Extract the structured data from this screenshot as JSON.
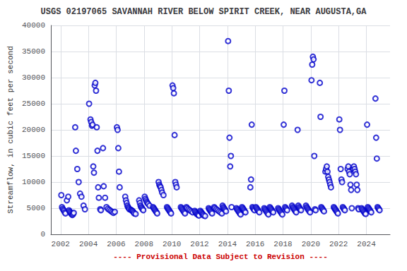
{
  "chart_data": {
    "type": "scatter",
    "title": "USGS 02197065 SAVANNAH RIVER BELOW SPIRIT CREEK, NEAR AUGUSTA,GA",
    "ylabel": "Streamflow, in cubic feet per second",
    "xlabel": "---- Provisional Data Subject to Revision ----",
    "xlim": [
      2001.3,
      2025.7
    ],
    "ylim": [
      0,
      40000
    ],
    "xticks": [
      2002,
      2004,
      2006,
      2008,
      2010,
      2012,
      2014,
      2016,
      2018,
      2020,
      2022,
      2024
    ],
    "yticks": [
      0,
      5000,
      10000,
      15000,
      20000,
      25000,
      30000,
      35000,
      40000
    ],
    "grid": true,
    "color": "#0000cc",
    "marker": "circle",
    "x": [
      2002.05,
      2002.1,
      2002.15,
      2002.2,
      2002.25,
      2002.3,
      2002.35,
      2002.45,
      2002.55,
      2002.6,
      2002.65,
      2002.7,
      2002.75,
      2002.8,
      2002.85,
      2002.9,
      2002.95,
      2003.05,
      2003.1,
      2003.2,
      2003.3,
      2003.4,
      2003.5,
      2003.65,
      2003.75,
      2004.05,
      2004.15,
      2004.2,
      2004.25,
      2004.3,
      2004.35,
      2004.4,
      2004.45,
      2004.5,
      2004.55,
      2004.6,
      2004.65,
      2004.7,
      2004.75,
      2004.85,
      2004.9,
      2005.05,
      2005.1,
      2005.2,
      2005.3,
      2005.4,
      2005.5,
      2005.6,
      2005.7,
      2005.8,
      2005.9,
      2006.05,
      2006.1,
      2006.15,
      2006.2,
      2006.25,
      2006.65,
      2006.7,
      2006.75,
      2006.8,
      2006.85,
      2006.9,
      2006.95,
      2007.05,
      2007.1,
      2007.15,
      2007.2,
      2007.25,
      2007.3,
      2007.4,
      2007.65,
      2007.7,
      2007.75,
      2007.8,
      2007.85,
      2007.9,
      2007.95,
      2008.05,
      2008.1,
      2008.15,
      2008.2,
      2008.25,
      2008.3,
      2008.4,
      2008.65,
      2008.7,
      2008.75,
      2008.8,
      2008.85,
      2008.9,
      2008.95,
      2009.05,
      2009.1,
      2009.15,
      2009.2,
      2009.25,
      2009.3,
      2009.4,
      2009.65,
      2009.7,
      2009.75,
      2009.8,
      2009.85,
      2009.9,
      2009.95,
      2010.05,
      2010.1,
      2010.15,
      2010.2,
      2010.25,
      2010.3,
      2010.35,
      2010.65,
      2010.7,
      2010.75,
      2010.8,
      2010.85,
      2010.9,
      2010.95,
      2011.05,
      2011.1,
      2011.2,
      2011.3,
      2011.4,
      2011.5,
      2011.65,
      2011.7,
      2011.75,
      2011.8,
      2011.85,
      2011.9,
      2011.95,
      2012.05,
      2012.1,
      2012.15,
      2012.2,
      2012.25,
      2012.3,
      2012.4,
      2012.65,
      2012.7,
      2012.75,
      2012.8,
      2012.85,
      2012.9,
      2013.05,
      2013.1,
      2013.2,
      2013.3,
      2013.4,
      2013.5,
      2013.6,
      2013.65,
      2013.7,
      2013.75,
      2013.8,
      2013.85,
      2013.9,
      2014.05,
      2014.1,
      2014.15,
      2014.2,
      2014.25,
      2014.3,
      2014.65,
      2014.7,
      2014.75,
      2014.8,
      2014.85,
      2014.9,
      2014.95,
      2015.05,
      2015.1,
      2015.15,
      2015.2,
      2015.25,
      2015.3,
      2015.65,
      2015.7,
      2015.75,
      2015.8,
      2015.85,
      2015.9,
      2015.95,
      2016.05,
      2016.1,
      2016.15,
      2016.2,
      2016.25,
      2016.3,
      2016.65,
      2016.7,
      2016.75,
      2016.8,
      2016.85,
      2016.9,
      2016.95,
      2017.05,
      2017.1,
      2017.15,
      2017.2,
      2017.25,
      2017.3,
      2017.65,
      2017.7,
      2017.75,
      2017.8,
      2017.85,
      2017.9,
      2017.95,
      2018.05,
      2018.1,
      2018.15,
      2018.2,
      2018.25,
      2018.3,
      2018.65,
      2018.7,
      2018.75,
      2018.8,
      2018.85,
      2018.9,
      2018.95,
      2019.05,
      2019.1,
      2019.15,
      2019.2,
      2019.25,
      2019.3,
      2019.65,
      2019.7,
      2019.75,
      2019.8,
      2019.85,
      2019.9,
      2019.95,
      2020.05,
      2020.1,
      2020.15,
      2020.2,
      2020.25,
      2020.3,
      2020.35,
      2020.65,
      2020.7,
      2020.75,
      2020.8,
      2020.85,
      2020.9,
      2020.95,
      2021.05,
      2021.1,
      2021.15,
      2021.2,
      2021.25,
      2021.3,
      2021.35,
      2021.4,
      2021.45,
      2021.65,
      2021.7,
      2021.75,
      2021.8,
      2021.85,
      2021.9,
      2021.95,
      2022.05,
      2022.1,
      2022.15,
      2022.2,
      2022.25,
      2022.3,
      2022.35,
      2022.4,
      2022.45,
      2022.65,
      2022.7,
      2022.75,
      2022.8,
      2022.85,
      2022.9,
      2022.95,
      2023.05,
      2023.1,
      2023.15,
      2023.2,
      2023.25,
      2023.3,
      2023.35,
      2023.4,
      2023.45,
      2023.65,
      2023.7,
      2023.75,
      2023.8,
      2023.85,
      2023.9,
      2023.95,
      2024.05,
      2024.1,
      2024.15,
      2024.2,
      2024.25,
      2024.3,
      2024.35,
      2024.65,
      2024.7,
      2024.75,
      2024.8,
      2024.85,
      2024.9,
      2024.95
    ],
    "values": [
      7500,
      5200,
      4900,
      4700,
      4500,
      4200,
      4000,
      6500,
      7200,
      4600,
      4400,
      4200,
      4000,
      3800,
      3700,
      3900,
      4100,
      20500,
      16000,
      12500,
      10000,
      7800,
      7200,
      5500,
      4800,
      25000,
      22000,
      21500,
      20800,
      21000,
      13000,
      11800,
      28500,
      29000,
      27500,
      20500,
      16000,
      9000,
      7000,
      4800,
      4600,
      16500,
      9200,
      7000,
      5200,
      4900,
      4700,
      4500,
      4300,
      4100,
      4300,
      20500,
      20000,
      16500,
      12000,
      9000,
      7200,
      6500,
      6000,
      5500,
      5200,
      5000,
      4800,
      4700,
      4600,
      4500,
      4400,
      4200,
      4000,
      3900,
      6500,
      6000,
      5500,
      5200,
      5000,
      4800,
      4600,
      7200,
      6800,
      6500,
      6200,
      6000,
      5800,
      5500,
      5200,
      5000,
      4800,
      4600,
      4400,
      4200,
      4000,
      10000,
      9500,
      9200,
      9000,
      8500,
      8000,
      7500,
      5200,
      5000,
      4800,
      4600,
      4400,
      4200,
      4000,
      28500,
      28000,
      27000,
      19000,
      10000,
      9500,
      9000,
      5200,
      5000,
      4800,
      4600,
      4400,
      4200,
      4000,
      5200,
      5000,
      4800,
      4600,
      4400,
      4200,
      4500,
      4300,
      4100,
      3900,
      3800,
      3700,
      3600,
      4500,
      4300,
      4100,
      3900,
      3800,
      3600,
      3500,
      5000,
      4800,
      4600,
      4400,
      4200,
      4000,
      5200,
      5000,
      4800,
      4600,
      4400,
      4200,
      4000,
      5500,
      5200,
      5000,
      4800,
      4600,
      4400,
      37000,
      27500,
      18500,
      13000,
      15000,
      5200,
      5000,
      4800,
      4600,
      4400,
      4200,
      4000,
      3800,
      5200,
      5000,
      4800,
      4600,
      4400,
      4200,
      9000,
      10500,
      21000,
      5200,
      5000,
      4800,
      4600,
      5200,
      5000,
      4800,
      4600,
      4400,
      4200,
      5000,
      4800,
      4600,
      4400,
      4200,
      4000,
      3800,
      5200,
      5000,
      4800,
      4600,
      4400,
      4200,
      5000,
      4800,
      4600,
      4400,
      4200,
      4000,
      3800,
      21000,
      27500,
      5200,
      5000,
      4800,
      4600,
      5500,
      5200,
      5000,
      4800,
      4600,
      4400,
      4200,
      20000,
      5500,
      5200,
      5000,
      4800,
      4600,
      5500,
      5200,
      5000,
      4800,
      4600,
      4400,
      4200,
      29500,
      32500,
      34000,
      33500,
      15000,
      4800,
      4600,
      29000,
      22500,
      5200,
      5000,
      4800,
      4600,
      4400,
      12000,
      12500,
      13000,
      12000,
      11000,
      10500,
      10000,
      9500,
      9000,
      5200,
      5000,
      4800,
      4600,
      4400,
      4200,
      4000,
      22000,
      20000,
      12500,
      10500,
      10000,
      5200,
      5000,
      4800,
      4600,
      12500,
      13000,
      12000,
      11500,
      9500,
      8500,
      5000,
      12500,
      13000,
      12500,
      12000,
      11500,
      9500,
      8500,
      5000,
      4800,
      5000,
      4800,
      4600,
      4400,
      4200,
      4000,
      3900,
      21000,
      5200,
      5000,
      4800,
      4600,
      4400,
      4200,
      26000,
      18500,
      14500,
      5200,
      5000,
      4800,
      4600
    ]
  }
}
